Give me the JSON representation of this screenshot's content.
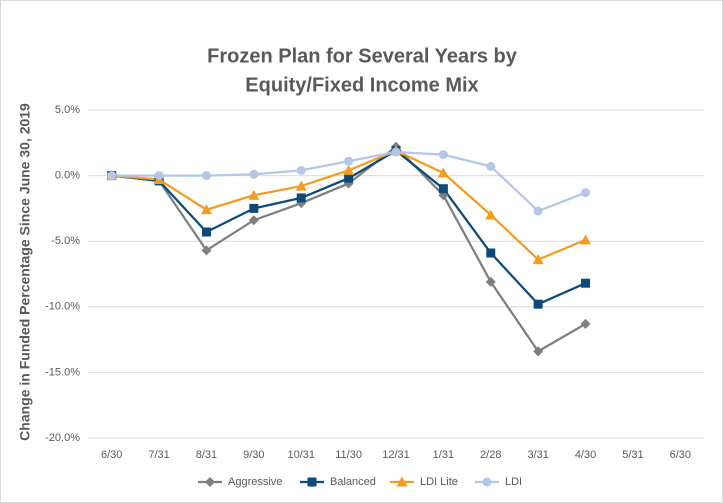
{
  "chart_data": {
    "type": "line",
    "title": [
      "Frozen Plan for Several Years by",
      "Equity/Fixed Income Mix"
    ],
    "y_label": "Change in Funded Percentage Since June 30, 2019",
    "categories": [
      "6/30",
      "7/31",
      "8/31",
      "9/30",
      "10/31",
      "11/30",
      "12/31",
      "1/31",
      "2/28",
      "3/31",
      "4/30",
      "5/31",
      "6/30"
    ],
    "series": [
      {
        "name": "Aggressive",
        "color": "#7f7f7f",
        "marker": "diamond",
        "values": [
          0,
          -0.4,
          -5.7,
          -3.4,
          -2.1,
          -0.6,
          2.2,
          -1.5,
          -8.1,
          -13.4,
          -11.3,
          null,
          null
        ]
      },
      {
        "name": "Balanced",
        "color": "#0d4a79",
        "marker": "square",
        "values": [
          0,
          -0.4,
          -4.3,
          -2.5,
          -1.7,
          -0.2,
          1.9,
          -1.0,
          -5.9,
          -9.8,
          -8.2,
          null,
          null
        ]
      },
      {
        "name": "LDI Lite",
        "color": "#f39c1f",
        "marker": "triangle",
        "values": [
          0,
          -0.3,
          -2.6,
          -1.5,
          -0.8,
          0.4,
          1.9,
          0.2,
          -3.0,
          -6.4,
          -4.9,
          null,
          null
        ]
      },
      {
        "name": "LDI",
        "color": "#b4c7e7",
        "marker": "circle",
        "values": [
          0,
          0,
          0,
          0.1,
          0.4,
          1.1,
          1.8,
          1.6,
          0.7,
          -2.7,
          -1.3,
          null,
          null
        ]
      }
    ],
    "ylim": [
      -20,
      5
    ],
    "yticks": [
      {
        "value": -20,
        "label": "-20.0%"
      },
      {
        "value": -15,
        "label": "-15.0%"
      },
      {
        "value": -10,
        "label": "-10.0%"
      },
      {
        "value": -5,
        "label": "-5.0%"
      },
      {
        "value": 0,
        "label": "0.0%"
      },
      {
        "value": 5,
        "label": "5.0%"
      }
    ],
    "grid": true,
    "legend": "bottom"
  }
}
